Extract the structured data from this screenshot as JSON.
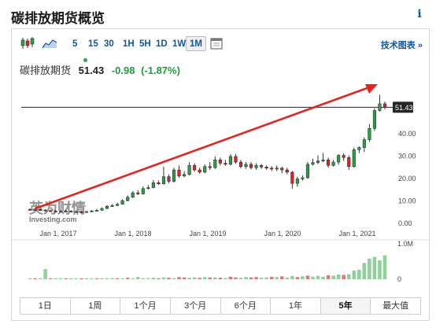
{
  "header": {
    "title": "碳排放期货概览",
    "info_label": "i"
  },
  "toolbar": {
    "timeframes": [
      "5",
      "15",
      "30",
      "1H",
      "5H",
      "1D",
      "1W",
      "1M"
    ],
    "active_timeframe": "1M",
    "tech_chart_label": "技术图表 »"
  },
  "quote": {
    "name": "碳排放期货",
    "price": "51.43",
    "change": "-0.98",
    "change_pct": "(-1.87%)",
    "arrow_color": "#2fa84f"
  },
  "colors": {
    "up": "#2c9e47",
    "down": "#d42828",
    "arrow": "#e8231b",
    "price_tag_bg": "#262626"
  },
  "watermark": {
    "brand_cn": "英为财情",
    "brand_en": "Investing.com"
  },
  "range_buttons": [
    "1日",
    "1周",
    "1个月",
    "3个月",
    "6个月",
    "1年",
    "5年",
    "最大值"
  ],
  "active_range": "5年",
  "chart_data": {
    "type": "candlestick",
    "price_axis": {
      "ticks": [
        "51.43",
        "40.00",
        "30.00",
        "20.00",
        "10.00",
        "0.00"
      ],
      "ylim": [
        0,
        60
      ],
      "current": 51.43
    },
    "volume_axis": {
      "ticks": [
        "1.0M",
        "0"
      ]
    },
    "x_ticks": [
      "Jan 1, 2017",
      "Jan 1, 2018",
      "Jan 1, 2019",
      "Jan 1, 2020",
      "Jan 1, 2021"
    ],
    "start": "2016-08",
    "candles": [
      [
        5.9,
        5.7,
        6.3,
        5.4
      ],
      [
        5.7,
        5.8,
        6.5,
        5.4
      ],
      [
        5.8,
        5.6,
        6.2,
        5.2
      ],
      [
        5.6,
        5.3,
        6.0,
        5.0
      ],
      [
        5.3,
        5.1,
        5.8,
        4.9
      ],
      [
        5.1,
        4.9,
        5.6,
        4.6
      ],
      [
        4.9,
        5.0,
        5.5,
        4.6
      ],
      [
        5.0,
        5.1,
        5.6,
        4.7
      ],
      [
        5.1,
        4.9,
        5.5,
        4.6
      ],
      [
        4.9,
        4.8,
        5.4,
        4.5
      ],
      [
        4.8,
        4.6,
        5.2,
        4.3
      ],
      [
        4.6,
        4.9,
        5.3,
        4.4
      ],
      [
        4.9,
        5.2,
        5.6,
        4.7
      ],
      [
        5.2,
        5.5,
        6.0,
        5.0
      ],
      [
        5.5,
        6.3,
        6.8,
        5.3
      ],
      [
        6.3,
        7.3,
        7.8,
        6.0
      ],
      [
        7.3,
        7.6,
        8.2,
        7.0
      ],
      [
        7.6,
        8.2,
        8.8,
        7.3
      ],
      [
        8.2,
        9.8,
        10.4,
        8.0
      ],
      [
        9.8,
        11.3,
        12.2,
        9.5
      ],
      [
        11.3,
        13.3,
        14.0,
        11.0
      ],
      [
        13.3,
        12.8,
        14.5,
        12.3
      ],
      [
        12.8,
        15.2,
        16.2,
        12.5
      ],
      [
        15.2,
        15.6,
        16.8,
        14.8
      ],
      [
        15.6,
        17.8,
        19.0,
        15.3
      ],
      [
        17.8,
        17.3,
        18.8,
        16.8
      ],
      [
        17.3,
        20.5,
        25.0,
        17.0
      ],
      [
        20.5,
        18.4,
        21.5,
        17.6
      ],
      [
        18.4,
        23.5,
        24.5,
        17.9
      ],
      [
        23.5,
        20.8,
        25.5,
        20.0
      ],
      [
        20.8,
        21.5,
        23.0,
        20.2
      ],
      [
        21.5,
        25.5,
        27.0,
        21.0
      ],
      [
        25.5,
        23.5,
        26.5,
        22.7
      ],
      [
        23.5,
        22.5,
        24.5,
        21.8
      ],
      [
        22.5,
        25.0,
        26.0,
        22.0
      ],
      [
        25.0,
        24.5,
        27.0,
        23.5
      ],
      [
        24.5,
        28.0,
        29.5,
        24.0
      ],
      [
        28.0,
        26.5,
        29.0,
        25.5
      ],
      [
        26.5,
        26.0,
        28.0,
        25.4
      ],
      [
        26.0,
        29.5,
        30.5,
        25.5
      ],
      [
        29.5,
        27.0,
        30.5,
        26.2
      ],
      [
        27.0,
        25.0,
        28.0,
        24.2
      ],
      [
        25.0,
        26.0,
        27.0,
        24.0
      ],
      [
        26.0,
        24.5,
        27.0,
        23.7
      ],
      [
        24.5,
        25.5,
        26.5,
        23.5
      ],
      [
        25.5,
        24.8,
        26.2,
        24.0
      ],
      [
        24.8,
        24.3,
        25.5,
        23.5
      ],
      [
        24.3,
        24.0,
        25.2,
        23.0
      ],
      [
        24.0,
        24.3,
        25.5,
        23.0
      ],
      [
        24.3,
        23.5,
        25.0,
        22.0
      ],
      [
        23.5,
        22.5,
        24.5,
        21.5
      ],
      [
        22.5,
        17.5,
        23.0,
        15.0
      ],
      [
        17.5,
        19.5,
        20.5,
        16.0
      ],
      [
        19.5,
        20.0,
        21.0,
        18.8
      ],
      [
        20.0,
        26.0,
        27.0,
        19.5
      ],
      [
        26.0,
        26.8,
        28.5,
        25.5
      ],
      [
        26.8,
        27.5,
        30.0,
        26.0
      ],
      [
        27.5,
        28.0,
        31.0,
        27.0
      ],
      [
        28.0,
        25.5,
        29.0,
        24.5
      ],
      [
        25.5,
        27.0,
        28.0,
        25.0
      ],
      [
        27.0,
        30.0,
        30.5,
        25.8
      ],
      [
        30.0,
        29.0,
        31.0,
        27.5
      ],
      [
        29.0,
        25.0,
        30.0,
        23.5
      ],
      [
        25.0,
        32.5,
        33.5,
        24.5
      ],
      [
        32.5,
        33.5,
        34.0,
        31.0
      ],
      [
        33.5,
        37.0,
        38.0,
        31.5
      ],
      [
        37.0,
        42.0,
        44.0,
        36.0
      ],
      [
        42.0,
        50.0,
        51.0,
        41.0
      ],
      [
        50.0,
        53.0,
        57.0,
        49.5
      ],
      [
        53.0,
        51.4,
        54.0,
        50.5
      ]
    ],
    "volume": [
      [
        0.02,
        0
      ],
      [
        0.01,
        1
      ],
      [
        0.02,
        0
      ],
      [
        0.28,
        0
      ],
      [
        0.01,
        1
      ],
      [
        0.01,
        0
      ],
      [
        0.02,
        0
      ],
      [
        0.01,
        1
      ],
      [
        0.01,
        0
      ],
      [
        0.01,
        0
      ],
      [
        0.01,
        1
      ],
      [
        0.01,
        0
      ],
      [
        0.02,
        0
      ],
      [
        0.01,
        1
      ],
      [
        0.02,
        0
      ],
      [
        0.01,
        0
      ],
      [
        0.03,
        0
      ],
      [
        0.02,
        1
      ],
      [
        0.01,
        0
      ],
      [
        0.04,
        1
      ],
      [
        0.02,
        0
      ],
      [
        0.06,
        0
      ],
      [
        0.02,
        0
      ],
      [
        0.03,
        0
      ],
      [
        0.04,
        0
      ],
      [
        0.02,
        1
      ],
      [
        0.05,
        0
      ],
      [
        0.04,
        1
      ],
      [
        0.03,
        0
      ],
      [
        0.06,
        1
      ],
      [
        0.05,
        1
      ],
      [
        0.04,
        0
      ],
      [
        0.05,
        0
      ],
      [
        0.04,
        1
      ],
      [
        0.06,
        0
      ],
      [
        0.05,
        1
      ],
      [
        0.05,
        0
      ],
      [
        0.04,
        1
      ],
      [
        0.03,
        0
      ],
      [
        0.07,
        1
      ],
      [
        0.05,
        1
      ],
      [
        0.04,
        0
      ],
      [
        0.06,
        0
      ],
      [
        0.05,
        1
      ],
      [
        0.06,
        1
      ],
      [
        0.04,
        0
      ],
      [
        0.05,
        0
      ],
      [
        0.07,
        1
      ],
      [
        0.06,
        0
      ],
      [
        0.08,
        1
      ],
      [
        0.05,
        0
      ],
      [
        0.09,
        0
      ],
      [
        0.06,
        1
      ],
      [
        0.08,
        0
      ],
      [
        0.1,
        1
      ],
      [
        0.07,
        0
      ],
      [
        0.09,
        0
      ],
      [
        0.07,
        0
      ],
      [
        0.11,
        1
      ],
      [
        0.1,
        0
      ],
      [
        0.13,
        0
      ],
      [
        0.12,
        1
      ],
      [
        0.14,
        0
      ],
      [
        0.24,
        0
      ],
      [
        0.26,
        0
      ],
      [
        0.45,
        0
      ],
      [
        0.57,
        0
      ],
      [
        0.62,
        0
      ],
      [
        0.52,
        0
      ],
      [
        0.66,
        0
      ]
    ]
  }
}
